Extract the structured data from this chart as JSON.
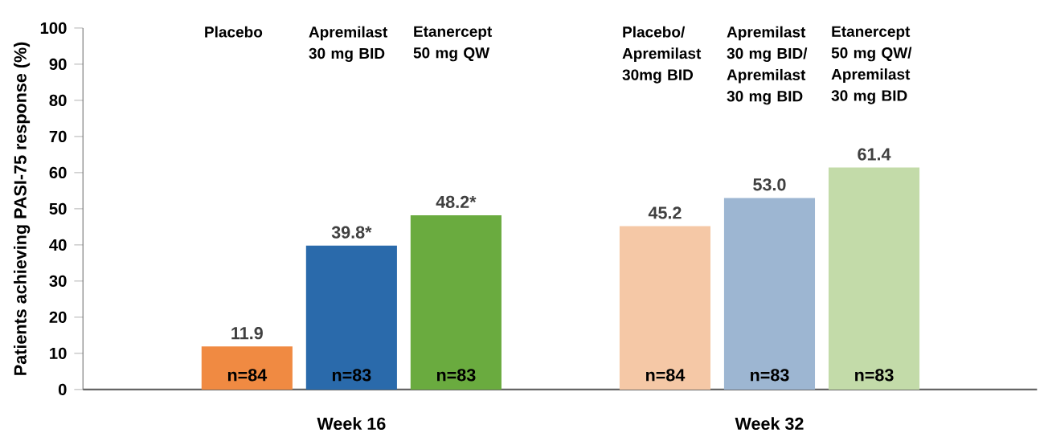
{
  "chart_data": {
    "type": "bar",
    "ylabel": "Patients achieving PASI-75 response (%)",
    "categories": [
      "Placebo",
      "Apremilast 30 mg BID",
      "Etanercept 50 mg QW",
      null,
      "Placebo/ Apremilast 30mg BID",
      "Apremilast 30 mg BID/ Apremilast 30 mg BID",
      "Etanercept 50 mg QW/ Apremilast 30 mg BID"
    ],
    "ylim": [
      0,
      100
    ],
    "yticks": [
      0,
      10,
      20,
      30,
      40,
      50,
      60,
      70,
      80,
      90,
      100
    ],
    "series": [
      {
        "colors": [
          "#f08a42",
          "#2a6aab",
          "#6aab3f",
          null,
          null,
          null,
          null
        ],
        "values": [
          11.9,
          39.8,
          48.2,
          null,
          null,
          null,
          null
        ],
        "value_labels": [
          "11.9",
          "39.8*",
          "48.2*",
          null,
          null,
          null,
          null
        ]
      },
      {
        "colors": [
          null,
          null,
          null,
          null,
          "#f5c8a6",
          "#9db6d2",
          "#c3dba9"
        ],
        "values": [
          null,
          null,
          null,
          null,
          45.2,
          53.0,
          61.4
        ],
        "value_labels": [
          null,
          null,
          null,
          null,
          "45.2",
          "53.0",
          "61.4"
        ]
      }
    ],
    "annotations": [
      "Week 16",
      "Week 32",
      "n=84",
      "n=83",
      "n=83",
      "n=84",
      "n=83",
      "n=83"
    ]
  }
}
